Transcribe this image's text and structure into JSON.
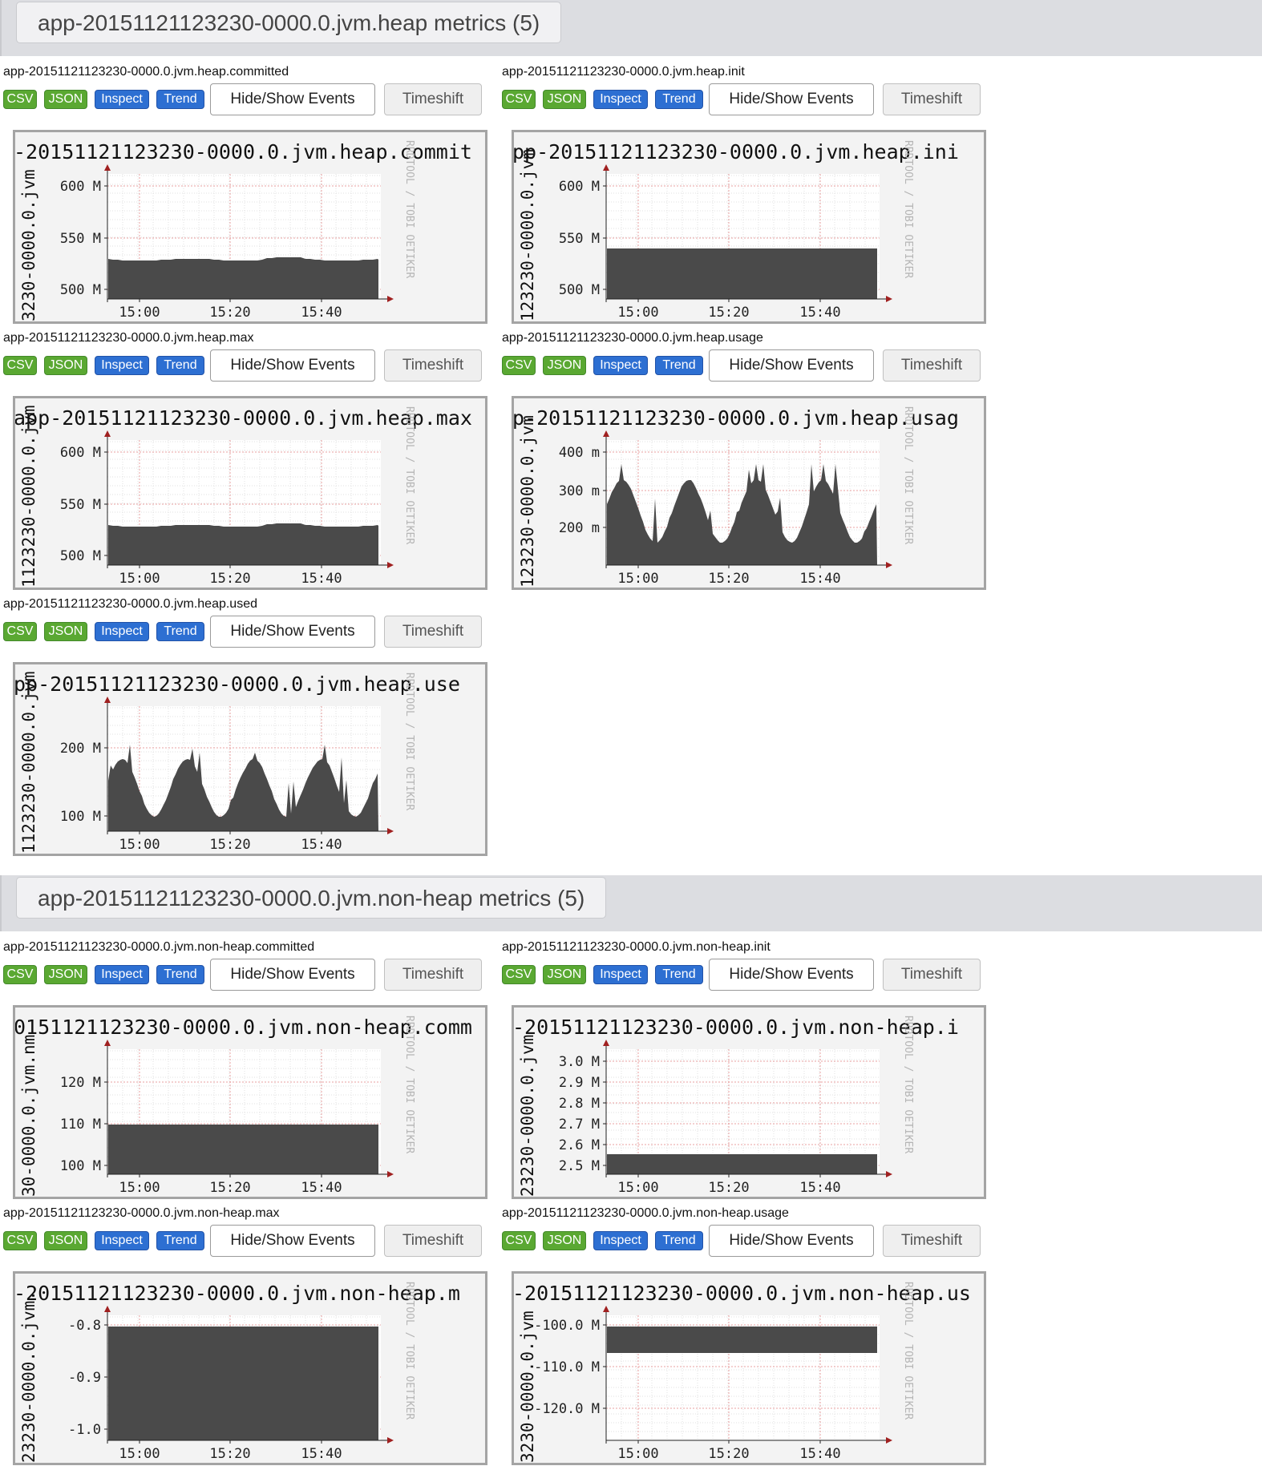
{
  "sections": [
    {
      "title": "app-20151121123230-0000.0.jvm.heap metrics (5)"
    },
    {
      "title": "app-20151121123230-0000.0.jvm.non-heap metrics (5)"
    }
  ],
  "buttons": {
    "csv": "CSV",
    "json": "JSON",
    "inspect": "Inspect",
    "trend": "Trend",
    "hide_show_events": "Hide/Show Events",
    "timeshift": "Timeshift"
  },
  "graph_common": {
    "watermark": "RRDTOOL / TOBI OETIKER",
    "x_ticks": [
      "15:00",
      "15:20",
      "15:40"
    ],
    "colors": {
      "area": "#4a4a4a",
      "grid": "#e8a0a0",
      "frame": "#a4a4a4",
      "background": "#f3f3f3",
      "axis_arrow": "#a02020"
    }
  },
  "metrics": [
    {
      "name": "app-20151121123230-0000.0.jvm.heap.committed",
      "graph_title": "-20151121123230-0000.0.jvm.heap.commit",
      "ylabel": "3230-0000.0.jvm",
      "y_ticks": [
        "600 M",
        "550 M",
        "500 M"
      ]
    },
    {
      "name": "app-20151121123230-0000.0.jvm.heap.init",
      "graph_title": "pp-20151121123230-0000.0.jvm.heap.ini",
      "ylabel": "123230-0000.0.jvm",
      "y_ticks": [
        "600 M",
        "550 M",
        "500 M"
      ]
    },
    {
      "name": "app-20151121123230-0000.0.jvm.heap.max",
      "graph_title": "app-20151121123230-0000.0.jvm.heap.max",
      "ylabel": "1123230-0000.0.jvm",
      "y_ticks": [
        "600 M",
        "550 M",
        "500 M"
      ]
    },
    {
      "name": "app-20151121123230-0000.0.jvm.heap.usage",
      "graph_title": "p-20151121123230-0000.0.jvm.heap.usag",
      "ylabel": "123230-0000.0.jvm",
      "y_ticks": [
        "400 m",
        "300 m",
        "200 m"
      ]
    },
    {
      "name": "app-20151121123230-0000.0.jvm.heap.used",
      "graph_title": "pp-20151121123230-0000.0.jvm.heap.use",
      "ylabel": "1123230-0000.0.jvm",
      "y_ticks": [
        "200 M",
        "100 M"
      ]
    },
    {
      "name": "app-20151121123230-0000.0.jvm.non-heap.committed",
      "graph_title": "0151121123230-0000.0.jvm.non-heap.comm",
      "ylabel": "30-0000.0.jvm.nm",
      "y_ticks": [
        "120 M",
        "110 M",
        "100 M"
      ]
    },
    {
      "name": "app-20151121123230-0000.0.jvm.non-heap.init",
      "graph_title": "-20151121123230-0000.0.jvm.non-heap.i",
      "ylabel": "23230-0000.0.jvm",
      "y_ticks": [
        "3.0 M",
        "2.9 M",
        "2.8 M",
        "2.7 M",
        "2.6 M",
        "2.5 M"
      ]
    },
    {
      "name": "app-20151121123230-0000.0.jvm.non-heap.max",
      "graph_title": "-20151121123230-0000.0.jvm.non-heap.m",
      "ylabel": "23230-0000.0.jvm.",
      "y_ticks": [
        "-0.8",
        "-0.9",
        "-1.0"
      ]
    },
    {
      "name": "app-20151121123230-0000.0.jvm.non-heap.usage",
      "graph_title": "-20151121123230-0000.0.jvm.non-heap.us",
      "ylabel": "3230-0000.0.jvm",
      "y_ticks": [
        "-100.0 M",
        "-110.0 M",
        "-120.0 M"
      ]
    }
  ]
}
